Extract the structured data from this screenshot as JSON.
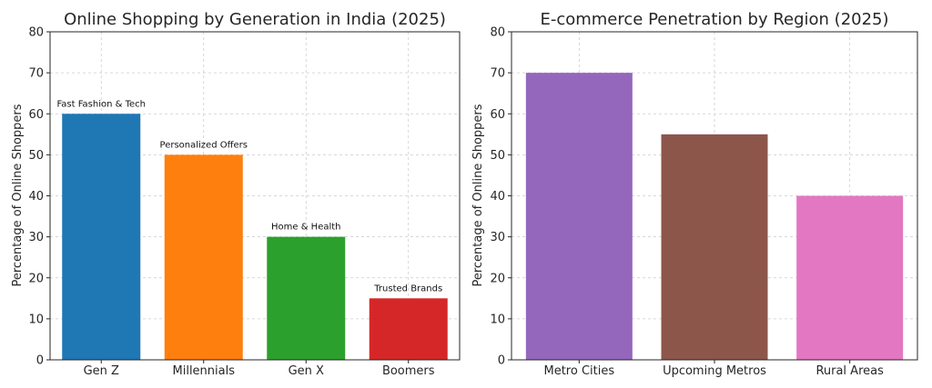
{
  "chart_data": [
    {
      "type": "bar",
      "title": "Online Shopping by Generation in India (2025)",
      "xlabel": "",
      "ylabel": "Percentage of Online Shoppers",
      "ylim": [
        0,
        80
      ],
      "yticks": [
        0,
        10,
        20,
        30,
        40,
        50,
        60,
        70,
        80
      ],
      "grid": true,
      "categories": [
        "Gen Z",
        "Millennials",
        "Gen X",
        "Boomers"
      ],
      "values": [
        60,
        50,
        30,
        15
      ],
      "annotations": [
        "Fast Fashion & Tech",
        "Personalized Offers",
        "Home & Health",
        "Trusted Brands"
      ],
      "colors": [
        "#1f77b4",
        "#ff7f0e",
        "#2ca02c",
        "#d62728"
      ]
    },
    {
      "type": "bar",
      "title": "E-commerce Penetration by Region (2025)",
      "xlabel": "",
      "ylabel": "Percentage of Online Shoppers",
      "ylim": [
        0,
        80
      ],
      "yticks": [
        0,
        10,
        20,
        30,
        40,
        50,
        60,
        70,
        80
      ],
      "grid": true,
      "categories": [
        "Metro Cities",
        "Upcoming Metros",
        "Rural Areas"
      ],
      "values": [
        70,
        55,
        40
      ],
      "annotations": [],
      "colors": [
        "#9467bd",
        "#8c564b",
        "#e377c2"
      ]
    }
  ]
}
